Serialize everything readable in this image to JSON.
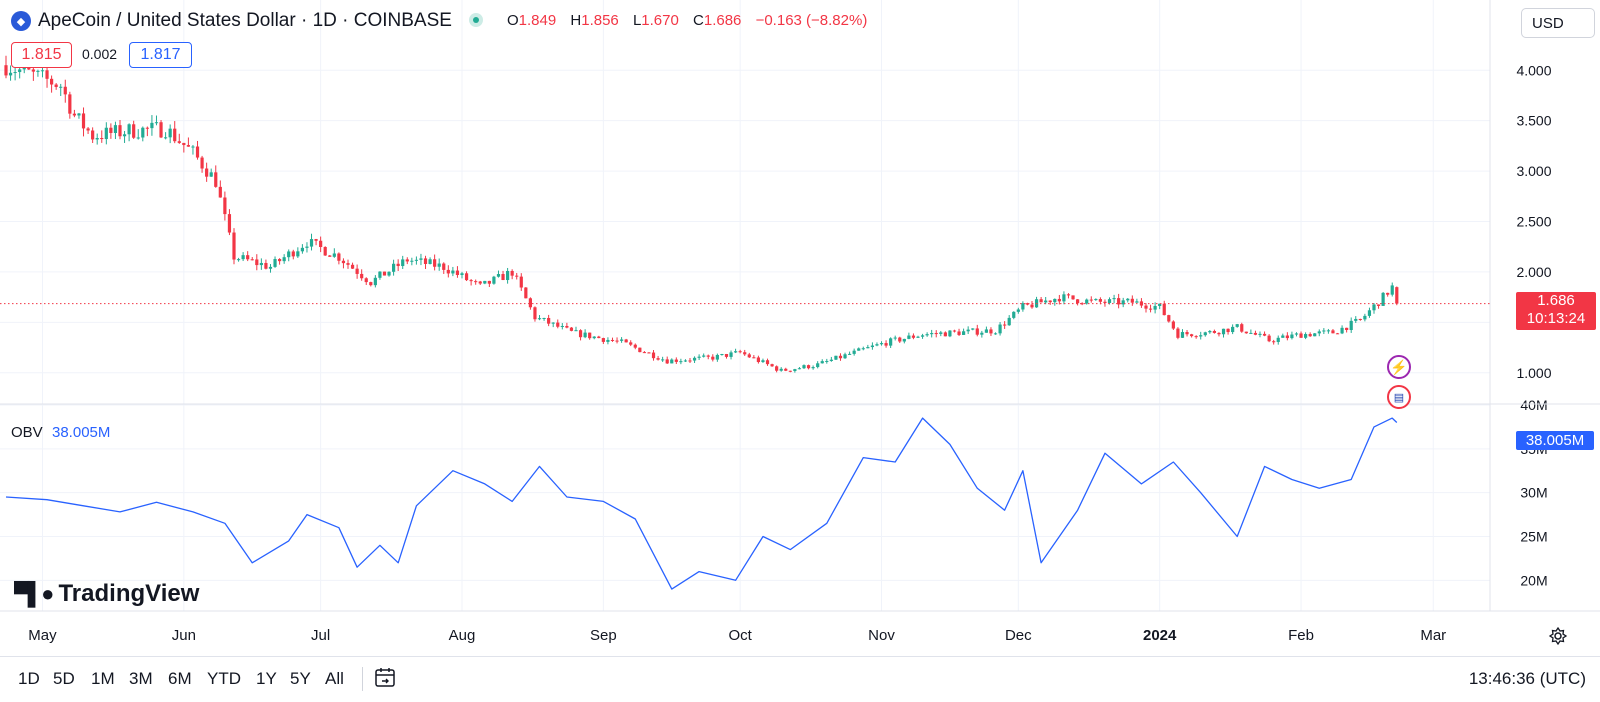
{
  "header": {
    "symbol_icon": "apecoin-logo-icon",
    "title": "ApeCoin / United States Dollar · 1D · COINBASE",
    "ohlc": {
      "o_label": "O",
      "o_value": "1.849",
      "h_label": "H",
      "h_value": "1.856",
      "l_label": "L",
      "l_value": "1.670",
      "c_label": "C",
      "c_value": "1.686",
      "change": "−0.163 (−8.82%)"
    },
    "sell_price": "1.815",
    "spread": "0.002",
    "buy_price": "1.817",
    "currency": "USD"
  },
  "price_axis": {
    "current_price": "1.686",
    "countdown": "10:13:24"
  },
  "indicator": {
    "name": "OBV",
    "value": "38.005M"
  },
  "time_axis_labels": [
    "May",
    "Jun",
    "Jul",
    "Aug",
    "Sep",
    "Oct",
    "Nov",
    "Dec",
    "2024",
    "Feb",
    "Mar"
  ],
  "watermark": {
    "logo_icon": "tradingview-logo-icon",
    "text": "TradingView"
  },
  "toolbar": {
    "timeframes": [
      "1D",
      "5D",
      "1M",
      "3M",
      "6M",
      "YTD",
      "1Y",
      "5Y",
      "All"
    ],
    "calendar_icon": "calendar-range-icon",
    "clock": "13:46:36 (UTC)",
    "settings_icon": "gear-icon"
  },
  "event_icons": [
    "lightning-icon",
    "us-flag-icon"
  ],
  "colors": {
    "up": "#22ab94",
    "down": "#f23645",
    "obv_line": "#2962ff",
    "grid": "#f0f3fa"
  },
  "chart_data": [
    {
      "type": "candlestick",
      "title": "ApeCoin / United States Dollar · 1D · COINBASE",
      "x_range": [
        "2023-04-23",
        "2024-02-22"
      ],
      "y_axis_ticks": [
        1.0,
        1.5,
        2.0,
        2.5,
        3.0,
        3.5,
        4.0
      ],
      "y_range": [
        0.7,
        4.3
      ],
      "price_line": 1.686,
      "grid": true,
      "close_path": [
        [
          "2023-04-23",
          4.05
        ],
        [
          "2023-04-29",
          3.95
        ],
        [
          "2023-05-05",
          3.85
        ],
        [
          "2023-05-08",
          3.55
        ],
        [
          "2023-05-12",
          3.35
        ],
        [
          "2023-05-20",
          3.4
        ],
        [
          "2023-05-28",
          3.42
        ],
        [
          "2023-06-03",
          3.18
        ],
        [
          "2023-06-08",
          2.9
        ],
        [
          "2023-06-12",
          2.15
        ],
        [
          "2023-06-20",
          2.05
        ],
        [
          "2023-06-28",
          2.3
        ],
        [
          "2023-07-05",
          2.15
        ],
        [
          "2023-07-12",
          1.9
        ],
        [
          "2023-07-20",
          2.12
        ],
        [
          "2023-07-28",
          2.05
        ],
        [
          "2023-08-05",
          1.85
        ],
        [
          "2023-08-12",
          2.0
        ],
        [
          "2023-08-17",
          1.55
        ],
        [
          "2023-08-25",
          1.4
        ],
        [
          "2023-09-05",
          1.3
        ],
        [
          "2023-09-15",
          1.12
        ],
        [
          "2023-09-25",
          1.15
        ],
        [
          "2023-10-01",
          1.2
        ],
        [
          "2023-10-10",
          1.02
        ],
        [
          "2023-10-18",
          1.08
        ],
        [
          "2023-10-26",
          1.2
        ],
        [
          "2023-11-02",
          1.3
        ],
        [
          "2023-11-10",
          1.38
        ],
        [
          "2023-11-18",
          1.4
        ],
        [
          "2023-11-26",
          1.42
        ],
        [
          "2023-12-02",
          1.65
        ],
        [
          "2023-12-10",
          1.75
        ],
        [
          "2023-12-18",
          1.7
        ],
        [
          "2023-12-26",
          1.7
        ],
        [
          "2024-01-01",
          1.65
        ],
        [
          "2024-01-05",
          1.38
        ],
        [
          "2024-01-12",
          1.4
        ],
        [
          "2024-01-18",
          1.45
        ],
        [
          "2024-01-25",
          1.32
        ],
        [
          "2024-02-01",
          1.38
        ],
        [
          "2024-02-08",
          1.4
        ],
        [
          "2024-02-14",
          1.52
        ],
        [
          "2024-02-19",
          1.75
        ],
        [
          "2024-02-21",
          1.85
        ],
        [
          "2024-02-22",
          1.686
        ]
      ]
    },
    {
      "type": "line",
      "title": "OBV",
      "x_range": [
        "2023-04-23",
        "2024-02-22"
      ],
      "y_axis_ticks": [
        "20M",
        "25M",
        "30M",
        "35M",
        "40M"
      ],
      "y_range": [
        16.5,
        40
      ],
      "series": [
        {
          "name": "OBV",
          "points": [
            [
              "2023-04-23",
              29.5
            ],
            [
              "2023-05-02",
              29.2
            ],
            [
              "2023-05-10",
              28.5
            ],
            [
              "2023-05-18",
              27.8
            ],
            [
              "2023-05-26",
              28.9
            ],
            [
              "2023-06-03",
              27.8
            ],
            [
              "2023-06-10",
              26.5
            ],
            [
              "2023-06-16",
              22.0
            ],
            [
              "2023-06-24",
              24.5
            ],
            [
              "2023-06-28",
              27.5
            ],
            [
              "2023-07-05",
              26.0
            ],
            [
              "2023-07-09",
              21.5
            ],
            [
              "2023-07-14",
              24.0
            ],
            [
              "2023-07-18",
              22.0
            ],
            [
              "2023-07-22",
              28.5
            ],
            [
              "2023-07-30",
              32.5
            ],
            [
              "2023-08-06",
              31.0
            ],
            [
              "2023-08-12",
              29.0
            ],
            [
              "2023-08-18",
              33.0
            ],
            [
              "2023-08-24",
              29.5
            ],
            [
              "2023-09-01",
              29.0
            ],
            [
              "2023-09-08",
              27.0
            ],
            [
              "2023-09-16",
              19.0
            ],
            [
              "2023-09-22",
              21.0
            ],
            [
              "2023-09-30",
              20.0
            ],
            [
              "2023-10-06",
              25.0
            ],
            [
              "2023-10-12",
              23.5
            ],
            [
              "2023-10-20",
              26.5
            ],
            [
              "2023-10-28",
              34.0
            ],
            [
              "2023-11-04",
              33.5
            ],
            [
              "2023-11-10",
              38.5
            ],
            [
              "2023-11-16",
              35.5
            ],
            [
              "2023-11-22",
              30.5
            ],
            [
              "2023-11-28",
              28.0
            ],
            [
              "2023-12-02",
              32.5
            ],
            [
              "2023-12-06",
              22.0
            ],
            [
              "2023-12-14",
              28.0
            ],
            [
              "2023-12-20",
              34.5
            ],
            [
              "2023-12-28",
              31.0
            ],
            [
              "2024-01-04",
              33.5
            ],
            [
              "2024-01-10",
              30.0
            ],
            [
              "2024-01-18",
              25.0
            ],
            [
              "2024-01-24",
              33.0
            ],
            [
              "2024-01-30",
              31.5
            ],
            [
              "2024-02-05",
              30.5
            ],
            [
              "2024-02-12",
              31.5
            ],
            [
              "2024-02-17",
              37.5
            ],
            [
              "2024-02-21",
              38.5
            ],
            [
              "2024-02-22",
              38.005
            ]
          ]
        }
      ]
    }
  ]
}
